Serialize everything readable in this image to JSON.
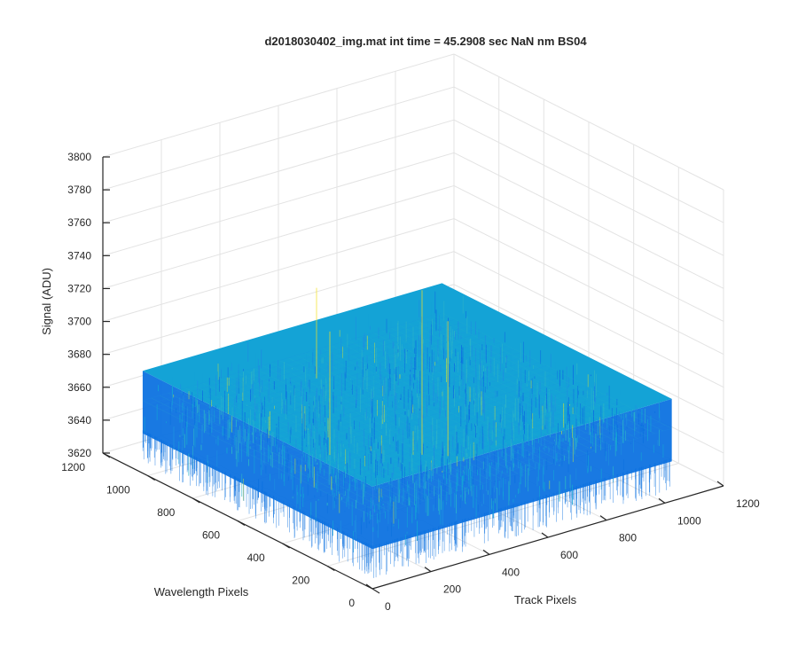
{
  "chart_data": {
    "type": "surface",
    "title": "d2018030402_img.mat int time = 45.2908 sec  NaN nm BS04",
    "xlabel": "Track Pixels",
    "ylabel": "Wavelength Pixels",
    "zlabel": "Signal (ADU)",
    "xlim": [
      0,
      1200
    ],
    "ylim": [
      0,
      1200
    ],
    "zlim": [
      3620,
      3800
    ],
    "xticks": [
      "0",
      "200",
      "400",
      "600",
      "800",
      "1000",
      "1200"
    ],
    "yticks": [
      "0",
      "200",
      "400",
      "600",
      "800",
      "1000",
      "1200"
    ],
    "zticks": [
      "3620",
      "3640",
      "3660",
      "3680",
      "3700",
      "3720",
      "3740",
      "3760",
      "3780",
      "3800"
    ],
    "surface_extent": {
      "x": [
        1,
        1024
      ],
      "y": [
        1,
        1024
      ]
    },
    "signal_mean": 3660,
    "signal_noise_range": [
      3640,
      3690
    ],
    "grid": true,
    "colormap": "parula",
    "colors": {
      "low": "#0d72e0",
      "mid": "#14a3d6",
      "high": "#9fd060",
      "peak": "#f5e020"
    }
  }
}
